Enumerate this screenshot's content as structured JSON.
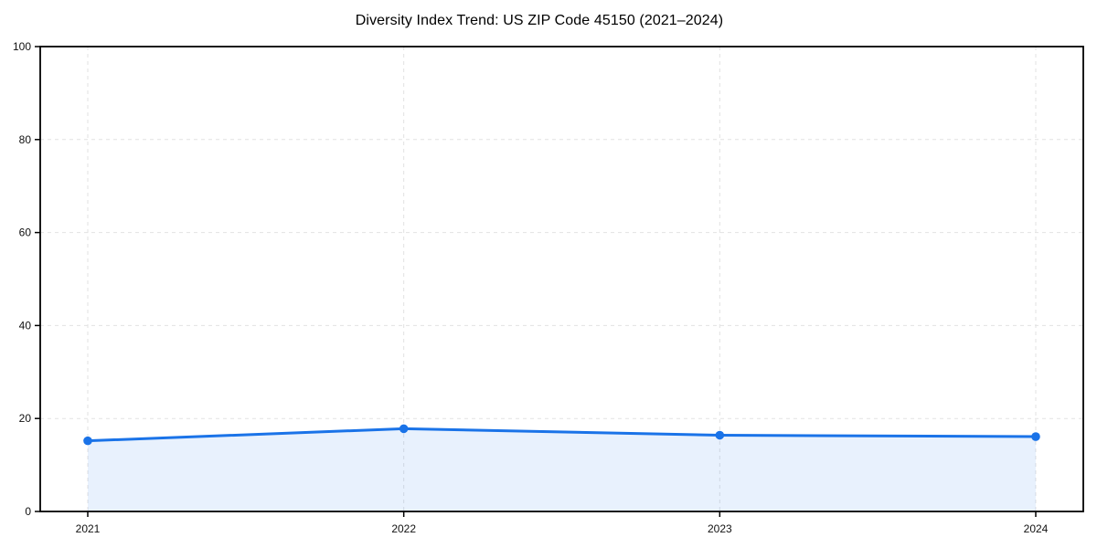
{
  "figure": {
    "background": "#ffffff",
    "title": "Diversity Index Trend: US ZIP Code 45150 (2021–2024)"
  },
  "chart_data": {
    "type": "line",
    "title": "Diversity Index Trend: US ZIP Code 45150 (2021–2024)",
    "x": [
      2021,
      2022,
      2023,
      2024
    ],
    "xtick_labels": [
      "2021",
      "2022",
      "2023",
      "2024"
    ],
    "series": [
      {
        "name": "Diversity Index",
        "values": [
          15.2,
          17.8,
          16.4,
          16.1
        ],
        "color": "#1a73e8",
        "area_fill_color": "rgba(26,115,232,0.10)",
        "marker": "circle",
        "area_fill": true
      }
    ],
    "xlabel": "",
    "ylabel": "",
    "ylim": [
      0,
      100
    ],
    "yticks": [
      0,
      20,
      40,
      60,
      80,
      100
    ],
    "grid": "dashed",
    "grid_color": "#e2e2e2",
    "spine_color": "#000000",
    "tick_label_color": "#111111",
    "legend": "none"
  }
}
